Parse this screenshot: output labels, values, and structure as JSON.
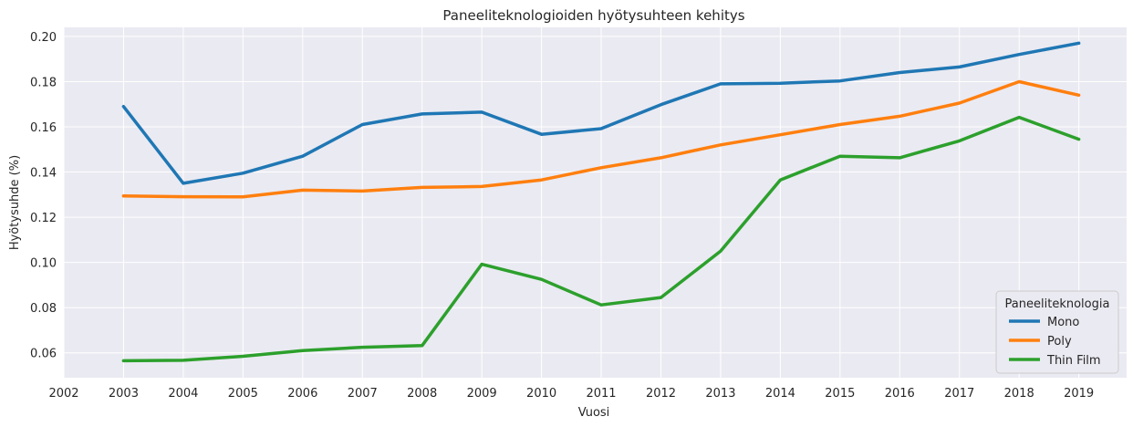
{
  "chart_data": {
    "type": "line",
    "title": "Paneeliteknologioiden hyötysuhteen kehitys",
    "xlabel": "Vuosi",
    "ylabel": "Hyötysuhde (%)",
    "x_ticks": [
      "2002",
      "2003",
      "2004",
      "2005",
      "2006",
      "2007",
      "2008",
      "2009",
      "2010",
      "2011",
      "2012",
      "2013",
      "2014",
      "2015",
      "2016",
      "2017",
      "2018",
      "2019"
    ],
    "y_ticks": [
      "0.06",
      "0.08",
      "0.10",
      "0.12",
      "0.14",
      "0.16",
      "0.18",
      "0.20"
    ],
    "xlim": [
      2002,
      2019.8
    ],
    "ylim": [
      0.049,
      0.204
    ],
    "grid": true,
    "legend": {
      "title": "Paneeliteknologia",
      "placement": "lower-right"
    },
    "x": [
      2003,
      2004,
      2005,
      2006,
      2007,
      2008,
      2009,
      2010,
      2011,
      2012,
      2013,
      2014,
      2015,
      2016,
      2017,
      2018,
      2019
    ],
    "series": [
      {
        "name": "Mono",
        "color": "#1f77b4",
        "values": [
          0.169,
          0.135,
          0.1395,
          0.147,
          0.161,
          0.1657,
          0.1665,
          0.1567,
          0.1592,
          0.1698,
          0.179,
          0.1793,
          0.1803,
          0.184,
          0.1865,
          0.192,
          0.197
        ]
      },
      {
        "name": "Poly",
        "color": "#ff7f0e",
        "values": [
          0.1294,
          0.1291,
          0.129,
          0.132,
          0.1316,
          0.1332,
          0.1336,
          0.1365,
          0.1419,
          0.1463,
          0.152,
          0.1565,
          0.161,
          0.1647,
          0.1705,
          0.18,
          0.174
        ]
      },
      {
        "name": "Thin Film",
        "color": "#2ca02c",
        "values": [
          0.0565,
          0.0567,
          0.0585,
          0.061,
          0.0625,
          0.0632,
          0.0992,
          0.0925,
          0.0812,
          0.0845,
          0.105,
          0.1365,
          0.147,
          0.1463,
          0.1538,
          0.1642,
          0.1545
        ]
      }
    ]
  }
}
